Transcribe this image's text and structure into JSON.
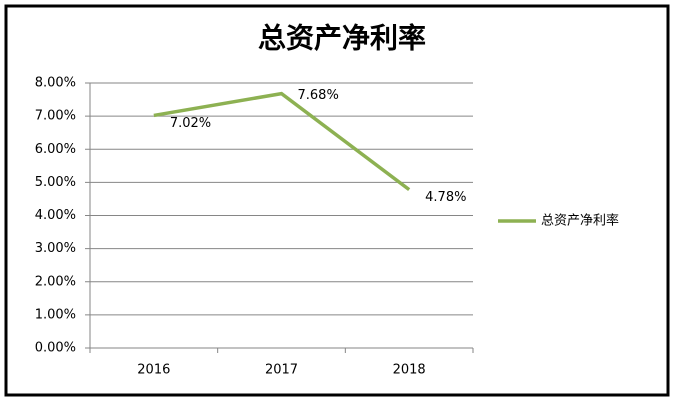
{
  "chart_data": {
    "type": "line",
    "title": "总资产净利率",
    "categories": [
      "2016",
      "2017",
      "2018"
    ],
    "series": [
      {
        "name": "总资产净利率",
        "color": "#8db152",
        "values": [
          7.02,
          7.68,
          4.78
        ],
        "value_labels": [
          "7.02%",
          "7.68%",
          "4.78%"
        ]
      }
    ],
    "ylim": [
      0,
      8
    ],
    "yticks": [
      {
        "value": 0,
        "label": "0.00%"
      },
      {
        "value": 1,
        "label": "1.00%"
      },
      {
        "value": 2,
        "label": "2.00%"
      },
      {
        "value": 3,
        "label": "3.00%"
      },
      {
        "value": 4,
        "label": "4.00%"
      },
      {
        "value": 5,
        "label": "5.00%"
      },
      {
        "value": 6,
        "label": "6.00%"
      },
      {
        "value": 7,
        "label": "7.00%"
      },
      {
        "value": 8,
        "label": "8.00%"
      }
    ],
    "grid": true,
    "legend": "right"
  }
}
